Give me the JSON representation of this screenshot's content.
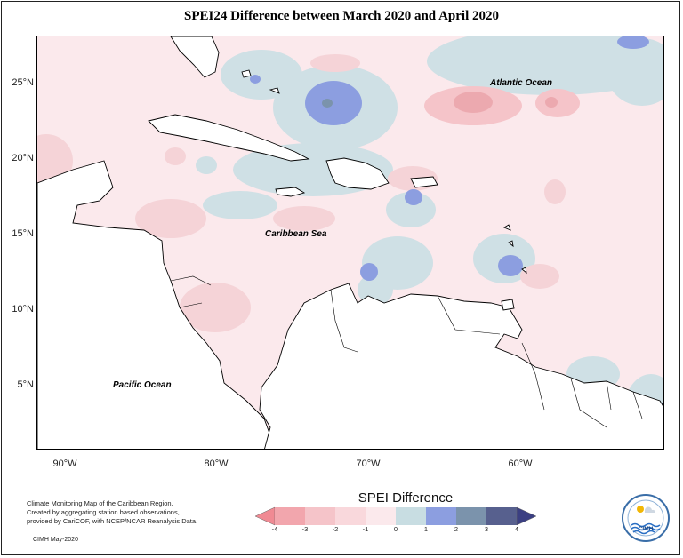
{
  "title": "SPEI24 Difference between March 2020 and April 2020",
  "map": {
    "latitude_labels": [
      "25°N",
      "20°N",
      "15°N",
      "10°N",
      "5°N"
    ],
    "longitude_labels": [
      "90°W",
      "80°W",
      "70°W",
      "60°W"
    ],
    "ocean_labels": {
      "atlantic": "Atlantic Ocean",
      "caribbean": "Caribbean Sea",
      "pacific": "Pacific Ocean"
    },
    "background_color": "#fbe9ec",
    "land_color": "#ffffff"
  },
  "legend": {
    "title": "SPEI Difference",
    "ticks": [
      "-4",
      "-3",
      "-2",
      "-1",
      "0",
      "1",
      "2",
      "3",
      "4"
    ],
    "colors": [
      "#f08a93",
      "#f2a6ad",
      "#f5c4c9",
      "#f9dce0",
      "#fbe9ec",
      "#c8dde2",
      "#8c9ee0",
      "#7b93ac",
      "#57608e",
      "#3b3f82"
    ]
  },
  "credits": {
    "line1": "Climate Monitoring Map of the Caribbean Region.",
    "line2": "Created by aggregating station based observations,",
    "line3": "provided by CariCOF, with NCEP/NCAR Reanalysis Data.",
    "stamp": "CIMH May-2020"
  },
  "logo": {
    "text": "CIMH",
    "icon": "cimh-logo-icon"
  }
}
